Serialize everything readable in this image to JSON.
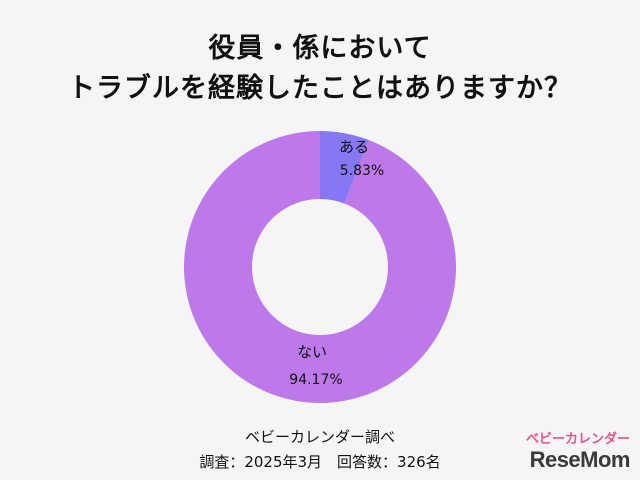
{
  "title_line1": "役員・係において",
  "title_line2": "トラブルを経験したことはありますか？",
  "chart_data": {
    "type": "pie",
    "donut": true,
    "slices": [
      {
        "label": "ある",
        "value": 5.83,
        "value_label": "5.83%",
        "color": "#8678f4"
      },
      {
        "label": "ない",
        "value": 94.17,
        "value_label": "94.17%",
        "color": "#bd79ea"
      }
    ]
  },
  "source": {
    "line1": "ベビーカレンダー調べ",
    "line2": "調査：2025年3月　回答数：326名"
  },
  "logo": {
    "top_text": "ベビーカレンダー",
    "main_text": "ReseMom"
  }
}
